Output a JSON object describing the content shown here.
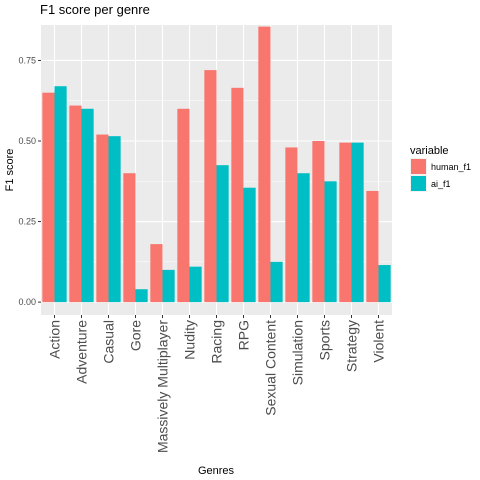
{
  "chart_data": {
    "type": "bar",
    "title": "F1 score per genre",
    "xlabel": "Genres",
    "ylabel": "F1 score",
    "ylim": [
      -0.04,
      0.86
    ],
    "yticks": [
      0.0,
      0.25,
      0.5,
      0.75
    ],
    "ytick_labels": [
      "0.00",
      "0.25",
      "0.50",
      "0.75"
    ],
    "grid": true,
    "legend_position": "right",
    "legend_title": "variable",
    "categories": [
      "Action",
      "Adventure",
      "Casual",
      "Gore",
      "Massively Multiplayer",
      "Nudity",
      "Racing",
      "RPG",
      "Sexual Content",
      "Simulation",
      "Sports",
      "Strategy",
      "Violent"
    ],
    "series": [
      {
        "name": "human_f1",
        "color": "#F8766D",
        "values": [
          0.65,
          0.61,
          0.52,
          0.4,
          0.18,
          0.6,
          0.72,
          0.665,
          0.855,
          0.48,
          0.5,
          0.495,
          0.345
        ]
      },
      {
        "name": "ai_f1",
        "color": "#00BFC4",
        "values": [
          0.67,
          0.6,
          0.515,
          0.04,
          0.1,
          0.11,
          0.425,
          0.355,
          0.125,
          0.4,
          0.375,
          0.495,
          0.115
        ]
      }
    ],
    "panel_background": "#EBEBEB",
    "grid_color": "#FFFFFF"
  }
}
